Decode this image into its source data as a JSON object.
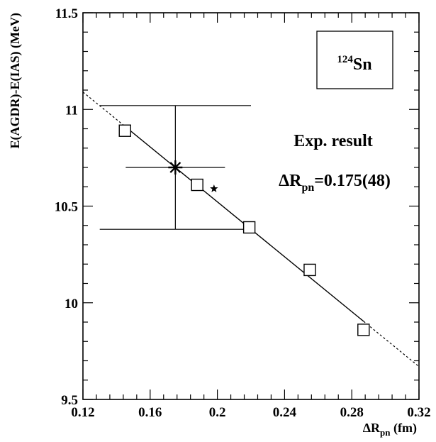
{
  "chart_data": {
    "type": "scatter",
    "xlabel": {
      "main": "ΔR",
      "sub": "pn",
      "tail": " (fm)"
    },
    "ylabel": "E(AGDR)-E(IAS) (MeV)",
    "xlim": [
      0.12,
      0.32
    ],
    "ylim": [
      9.5,
      11.5
    ],
    "x_ticks": [
      0.12,
      0.16,
      0.2,
      0.24,
      0.28,
      0.32
    ],
    "x_tick_labels": [
      "0.12",
      "0.16",
      "0.2",
      "0.24",
      "0.28",
      "0.32"
    ],
    "y_ticks": [
      9.5,
      10,
      10.5,
      11,
      11.5
    ],
    "y_tick_labels": [
      "9.5",
      "10",
      "10.5",
      "11",
      "11.5"
    ],
    "grid": false,
    "calculations": [
      {
        "x": 0.145,
        "y": 10.89
      },
      {
        "x": 0.188,
        "y": 10.61
      },
      {
        "x": 0.219,
        "y": 10.39
      },
      {
        "x": 0.255,
        "y": 10.17
      },
      {
        "x": 0.287,
        "y": 9.86
      }
    ],
    "fit_line": {
      "x": [
        0.12,
        0.32
      ],
      "y": [
        11.09,
        9.67
      ],
      "solid_range": [
        0.145,
        0.287
      ]
    },
    "experiment": {
      "x": 0.175,
      "y": 10.7,
      "x_err": [
        0.13,
        0.22
      ],
      "y_err": [
        10.38,
        11.02
      ]
    },
    "extra_point": {
      "x": 0.198,
      "y": 10.59
    },
    "nucleus": {
      "mass": "124",
      "element": "Sn"
    },
    "annotation": {
      "line1": "Exp. result",
      "line2": {
        "main": "ΔR",
        "sub": "pn",
        "tail": "=0.175(48)"
      }
    }
  }
}
